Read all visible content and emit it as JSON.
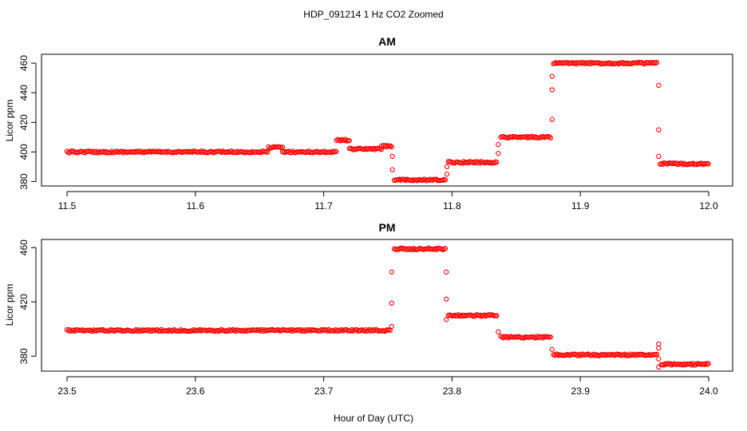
{
  "title": "HDP_091214  1 Hz CO2 Zoomed",
  "xlabel": "Hour of Day (UTC)",
  "chart_data": [
    {
      "type": "scatter",
      "title": "AM",
      "ylabel": "Licor ppm",
      "xlim": [
        11.5,
        12.0
      ],
      "ylim": [
        377,
        466
      ],
      "xticks": [
        "11.5",
        "11.6",
        "11.7",
        "11.8",
        "11.9",
        "12.0"
      ],
      "yticks": [
        "380",
        "400",
        "420",
        "440",
        "460"
      ],
      "marker": "open-circle",
      "color": "#ff0000",
      "levels": [
        {
          "x": [
            11.5,
            11.657
          ],
          "y": 400
        },
        {
          "x": [
            11.657,
            11.668
          ],
          "y": 403
        },
        {
          "x": [
            11.668,
            11.71
          ],
          "y": 400
        },
        {
          "x": [
            11.71,
            11.72
          ],
          "y": 408
        },
        {
          "x": [
            11.72,
            11.745
          ],
          "y": 402
        },
        {
          "x": [
            11.745,
            11.753
          ],
          "y": 404
        },
        {
          "x": [
            11.755,
            11.795
          ],
          "y": 381
        },
        {
          "x": [
            11.797,
            11.835
          ],
          "y": 393
        },
        {
          "x": [
            11.838,
            11.877
          ],
          "y": 410
        },
        {
          "x": [
            11.879,
            11.96
          ],
          "y": 460
        },
        {
          "x": [
            11.962,
            12.0
          ],
          "y": 392
        }
      ],
      "transitions": [
        {
          "x": 11.7535,
          "y": [
            397,
            388
          ]
        },
        {
          "x": 11.796,
          "y": [
            385,
            390
          ]
        },
        {
          "x": 11.836,
          "y": [
            399,
            405
          ]
        },
        {
          "x": 11.878,
          "y": [
            422,
            442,
            451
          ]
        },
        {
          "x": 11.961,
          "y": [
            445,
            415,
            397
          ]
        }
      ]
    },
    {
      "type": "scatter",
      "title": "PM",
      "ylabel": "Licor ppm",
      "xlim": [
        23.5,
        24.0
      ],
      "ylim": [
        369,
        466
      ],
      "xticks": [
        "23.5",
        "23.6",
        "23.7",
        "23.8",
        "23.9",
        "24.0"
      ],
      "yticks": [
        "380",
        "420",
        "460"
      ],
      "marker": "open-circle",
      "color": "#ff0000",
      "levels": [
        {
          "x": [
            23.5,
            23.752
          ],
          "y": 399
        },
        {
          "x": [
            23.755,
            23.795
          ],
          "y": 459
        },
        {
          "x": [
            23.797,
            23.835
          ],
          "y": 410
        },
        {
          "x": [
            23.838,
            23.877
          ],
          "y": 394
        },
        {
          "x": [
            23.879,
            23.96
          ],
          "y": 381
        },
        {
          "x": [
            23.963,
            24.0
          ],
          "y": 374
        }
      ],
      "transitions": [
        {
          "x": 23.753,
          "y": [
            402,
            419,
            442
          ]
        },
        {
          "x": 23.7955,
          "y": [
            442,
            422,
            407
          ]
        },
        {
          "x": 23.836,
          "y": [
            398
          ]
        },
        {
          "x": 23.878,
          "y": [
            385
          ]
        },
        {
          "x": 23.961,
          "y": [
            372,
            378,
            386,
            389
          ]
        }
      ]
    }
  ]
}
